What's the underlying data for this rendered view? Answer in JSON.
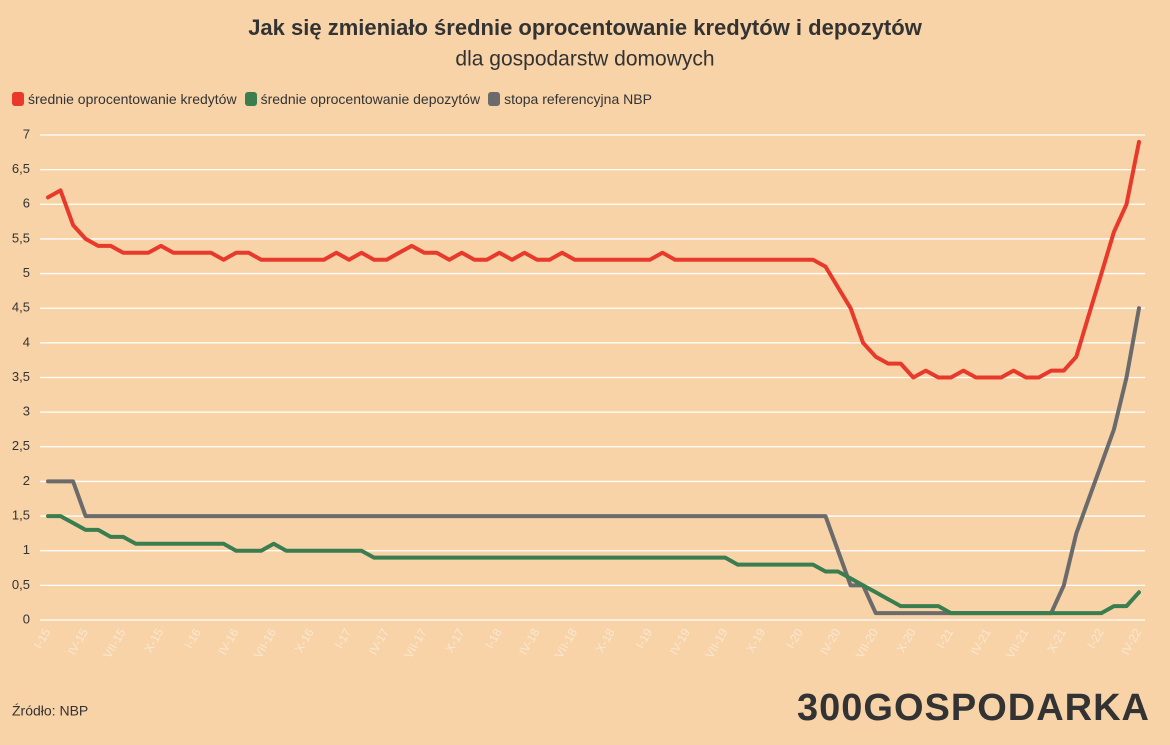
{
  "chart_data": {
    "type": "line",
    "title": "Jak się zmieniało średnie oprocentowanie kredytów i depozytów",
    "subtitle": "dla gospodarstw domowych",
    "source": "Źródło: NBP",
    "logo": "300GOSPODARKA",
    "categories": [
      "I-15",
      null,
      null,
      "IV-15",
      null,
      null,
      "VII-15",
      null,
      null,
      "X-15",
      null,
      null,
      "I-16",
      null,
      null,
      "IV-16",
      null,
      null,
      "VII-16",
      null,
      null,
      "X-16",
      null,
      null,
      "I-17",
      null,
      null,
      "IV-17",
      null,
      null,
      "VII-17",
      null,
      null,
      "X-17",
      null,
      null,
      "I-18",
      null,
      null,
      "IV-18",
      null,
      null,
      "VII-18",
      null,
      null,
      "X-18",
      null,
      null,
      "I-19",
      null,
      null,
      "IV-19",
      null,
      null,
      "VII-19",
      null,
      null,
      "X-19",
      null,
      null,
      "I-20",
      null,
      null,
      "IV-20",
      null,
      null,
      "VII-20",
      null,
      null,
      "X-20",
      null,
      null,
      "I-21",
      null,
      null,
      "IV-21",
      null,
      null,
      "VII-21",
      null,
      null,
      "X-21",
      null,
      null,
      "I-22",
      null,
      null,
      "IV-22"
    ],
    "series": [
      {
        "name": "średnie oprocentowanie kredytów",
        "color": "#e8392b",
        "values": [
          6.1,
          6.2,
          5.7,
          5.5,
          5.4,
          5.4,
          5.3,
          5.3,
          5.3,
          5.4,
          5.3,
          5.3,
          5.3,
          5.3,
          5.2,
          5.3,
          5.3,
          5.2,
          5.2,
          5.2,
          5.2,
          5.2,
          5.2,
          5.3,
          5.2,
          5.3,
          5.2,
          5.2,
          5.3,
          5.4,
          5.3,
          5.3,
          5.2,
          5.3,
          5.2,
          5.2,
          5.3,
          5.2,
          5.3,
          5.2,
          5.2,
          5.3,
          5.2,
          5.2,
          5.2,
          5.2,
          5.2,
          5.2,
          5.2,
          5.3,
          5.2,
          5.2,
          5.2,
          5.2,
          5.2,
          5.2,
          5.2,
          5.2,
          5.2,
          5.2,
          5.2,
          5.2,
          5.1,
          4.8,
          4.5,
          4.0,
          3.8,
          3.7,
          3.7,
          3.5,
          3.6,
          3.5,
          3.5,
          3.6,
          3.5,
          3.5,
          3.5,
          3.6,
          3.5,
          3.5,
          3.6,
          3.6,
          3.8,
          4.4,
          5.0,
          5.6,
          6.0,
          6.9
        ]
      },
      {
        "name": "średnie oprocentowanie depozytów",
        "color": "#3a7d4f",
        "values": [
          1.5,
          1.5,
          1.4,
          1.3,
          1.3,
          1.2,
          1.2,
          1.1,
          1.1,
          1.1,
          1.1,
          1.1,
          1.1,
          1.1,
          1.1,
          1.0,
          1.0,
          1.0,
          1.1,
          1.0,
          1.0,
          1.0,
          1.0,
          1.0,
          1.0,
          1.0,
          0.9,
          0.9,
          0.9,
          0.9,
          0.9,
          0.9,
          0.9,
          0.9,
          0.9,
          0.9,
          0.9,
          0.9,
          0.9,
          0.9,
          0.9,
          0.9,
          0.9,
          0.9,
          0.9,
          0.9,
          0.9,
          0.9,
          0.9,
          0.9,
          0.9,
          0.9,
          0.9,
          0.9,
          0.9,
          0.8,
          0.8,
          0.8,
          0.8,
          0.8,
          0.8,
          0.8,
          0.7,
          0.7,
          0.6,
          0.5,
          0.4,
          0.3,
          0.2,
          0.2,
          0.2,
          0.2,
          0.1,
          0.1,
          0.1,
          0.1,
          0.1,
          0.1,
          0.1,
          0.1,
          0.1,
          0.1,
          0.1,
          0.1,
          0.1,
          0.2,
          0.2,
          0.4
        ]
      },
      {
        "name": "stopa referencyjna NBP",
        "color": "#6b6b6b",
        "values": [
          2.0,
          2.0,
          2.0,
          1.5,
          1.5,
          1.5,
          1.5,
          1.5,
          1.5,
          1.5,
          1.5,
          1.5,
          1.5,
          1.5,
          1.5,
          1.5,
          1.5,
          1.5,
          1.5,
          1.5,
          1.5,
          1.5,
          1.5,
          1.5,
          1.5,
          1.5,
          1.5,
          1.5,
          1.5,
          1.5,
          1.5,
          1.5,
          1.5,
          1.5,
          1.5,
          1.5,
          1.5,
          1.5,
          1.5,
          1.5,
          1.5,
          1.5,
          1.5,
          1.5,
          1.5,
          1.5,
          1.5,
          1.5,
          1.5,
          1.5,
          1.5,
          1.5,
          1.5,
          1.5,
          1.5,
          1.5,
          1.5,
          1.5,
          1.5,
          1.5,
          1.5,
          1.5,
          1.5,
          1.0,
          0.5,
          0.5,
          0.1,
          0.1,
          0.1,
          0.1,
          0.1,
          0.1,
          0.1,
          0.1,
          0.1,
          0.1,
          0.1,
          0.1,
          0.1,
          0.1,
          0.1,
          0.5,
          1.25,
          1.75,
          2.25,
          2.75,
          3.5,
          4.5
        ]
      }
    ],
    "ylim": [
      0,
      7
    ],
    "yticks": [
      0,
      {
        "value": 0.5,
        "label": "0,5"
      },
      1,
      {
        "value": 1.5,
        "label": "1,5"
      },
      2,
      {
        "value": 2.5,
        "label": "2,5"
      },
      3,
      {
        "value": 3.5,
        "label": "3,5"
      },
      4,
      {
        "value": 4.5,
        "label": "4,5"
      },
      5,
      {
        "value": 5.5,
        "label": "5,5"
      },
      6,
      {
        "value": 6.5,
        "label": "6,5"
      },
      7
    ],
    "grid": true
  }
}
